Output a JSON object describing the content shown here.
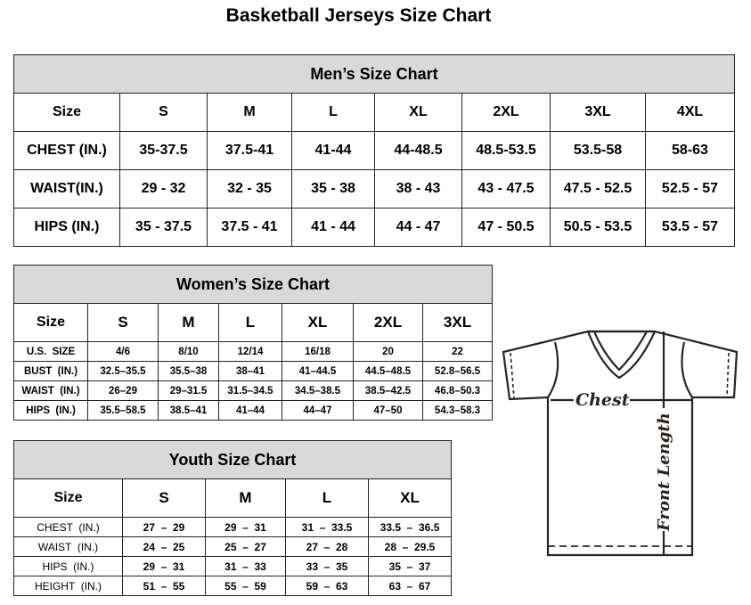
{
  "title": "Basketball Jerseys Size Chart",
  "mens": {
    "title": "Men’s Size Chart",
    "header": [
      "Size",
      "S",
      "M",
      "L",
      "XL",
      "2XL",
      "3XL",
      "4XL"
    ],
    "rows": [
      [
        "CHEST (IN.)",
        "35-37.5",
        "37.5-41",
        "41-44",
        "44-48.5",
        "48.5-53.5",
        "53.5-58",
        "58-63"
      ],
      [
        "WAIST(IN.)",
        "29 - 32",
        "32 - 35",
        "35 - 38",
        "38 - 43",
        "43 - 47.5",
        "47.5 - 52.5",
        "52.5 - 57"
      ],
      [
        "HIPS (IN.)",
        "35 - 37.5",
        "37.5 - 41",
        "41 - 44",
        "44 - 47",
        "47 - 50.5",
        "50.5 - 53.5",
        "53.5 - 57"
      ]
    ]
  },
  "womens": {
    "title": "Women’s Size Chart",
    "header": [
      "Size",
      "S",
      "M",
      "L",
      "XL",
      "2XL",
      "3XL"
    ],
    "rows": [
      [
        "U.S.  SIZE",
        "4/6",
        "8/10",
        "12/14",
        "16/18",
        "20",
        "22"
      ],
      [
        "BUST  (IN.)",
        "32.5–35.5",
        "35.5–38",
        "38–41",
        "41–44.5",
        "44.5–48.5",
        "52.8–56.5"
      ],
      [
        "WAIST  (IN.)",
        "26–29",
        "29–31.5",
        "31.5–34.5",
        "34.5–38.5",
        "38.5–42.5",
        "46.8–50.3"
      ],
      [
        "HIPS  (IN.)",
        "35.5–58.5",
        "38.5–41",
        "41–44",
        "44–47",
        "47–50",
        "54.3–58.3"
      ]
    ]
  },
  "youth": {
    "title": "Youth Size Chart",
    "header": [
      "Size",
      "S",
      "M",
      "L",
      "XL"
    ],
    "rows": [
      [
        "CHEST  (IN.)",
        "27  –  29",
        "29  –  31",
        "31  –  33.5",
        "33.5  –  36.5"
      ],
      [
        "WAIST  (IN.)",
        "24  –  25",
        "25  –  27",
        "27  –  28",
        "28  –  29.5"
      ],
      [
        "HIPS  (IN.)",
        "29  –  31",
        "31  –  33",
        "33  –  35",
        "35  –  37"
      ],
      [
        "HEIGHT  (IN.)",
        "51  –  55",
        "55  –  59",
        "59  –  63",
        "63  –  67"
      ]
    ]
  },
  "diagram": {
    "chest_label": "Chest",
    "length_label": "Front Length"
  }
}
